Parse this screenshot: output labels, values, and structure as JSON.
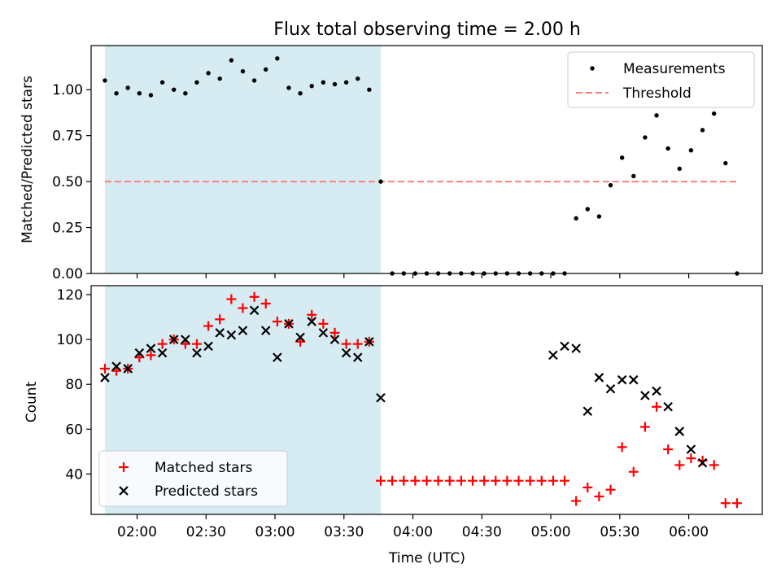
{
  "chart_data": [
    {
      "type": "scatter",
      "title": "Flux total observing time = 2.00 h",
      "xlabel": "",
      "ylabel": "Matched/Predicted stars",
      "ylim": [
        0,
        1.24
      ],
      "yticks": [
        "0.00",
        "0.25",
        "0.50",
        "0.75",
        "1.00"
      ],
      "ytick_values": [
        0,
        0.25,
        0.5,
        0.75,
        1.0
      ],
      "x_unit": "minutes of day (UTC)",
      "xlim": [
        100,
        392
      ],
      "shaded_span": [
        106,
        226
      ],
      "shade_color": "#add8e6",
      "legend_position": "upper right",
      "series": [
        {
          "name": "Measurements",
          "marker": "dot",
          "color": "#000000",
          "x": [
            106,
            111,
            116,
            121,
            126,
            131,
            136,
            141,
            146,
            151,
            156,
            161,
            166,
            171,
            176,
            181,
            186,
            191,
            196,
            201,
            206,
            211,
            216,
            221,
            226,
            231,
            236,
            241,
            246,
            251,
            256,
            261,
            266,
            271,
            276,
            281,
            286,
            291,
            296,
            301,
            306,
            311,
            316,
            321,
            326,
            331,
            336,
            341,
            346,
            351,
            356,
            361,
            366,
            371,
            376,
            381
          ],
          "y": [
            1.05,
            0.98,
            1.01,
            0.98,
            0.97,
            1.04,
            1.0,
            0.98,
            1.04,
            1.09,
            1.06,
            1.16,
            1.1,
            1.05,
            1.11,
            1.17,
            1.01,
            0.98,
            1.02,
            1.04,
            1.03,
            1.04,
            1.06,
            1.0,
            0.5,
            0,
            0,
            0,
            0,
            0,
            0,
            0,
            0,
            0,
            0,
            0,
            0,
            0,
            0,
            0,
            0,
            0.3,
            0.35,
            0.31,
            0.48,
            0.63,
            0.53,
            0.74,
            0.86,
            0.68,
            0.57,
            0.67,
            0.78,
            0.87,
            0.6,
            0
          ]
        },
        {
          "name": "Threshold",
          "line": "dashed",
          "color": "#ff7f7f",
          "x": [
            106,
            381
          ],
          "y": [
            0.5,
            0.5
          ]
        }
      ]
    },
    {
      "type": "scatter",
      "title": "",
      "xlabel": "Time (UTC)",
      "ylabel": "Count",
      "ylim": [
        22,
        124
      ],
      "yticks": [
        "40",
        "60",
        "80",
        "100",
        "120"
      ],
      "ytick_values": [
        40,
        60,
        80,
        100,
        120
      ],
      "xticks": [
        "02:00",
        "02:30",
        "03:00",
        "03:30",
        "04:00",
        "04:30",
        "05:00",
        "05:30",
        "06:00"
      ],
      "xtick_values": [
        120,
        150,
        180,
        210,
        240,
        270,
        300,
        330,
        360
      ],
      "legend_position": "lower left",
      "series": [
        {
          "name": "Matched stars",
          "marker": "plus",
          "color": "#ff0000",
          "x": [
            106,
            111,
            116,
            121,
            126,
            131,
            136,
            141,
            146,
            151,
            156,
            161,
            166,
            171,
            176,
            181,
            186,
            191,
            196,
            201,
            206,
            211,
            216,
            221,
            226,
            231,
            236,
            241,
            246,
            251,
            256,
            261,
            266,
            271,
            276,
            281,
            286,
            291,
            296,
            301,
            306,
            311,
            316,
            321,
            326,
            331,
            336,
            341,
            346,
            351,
            356,
            361,
            366,
            371,
            376,
            381
          ],
          "y": [
            87,
            86,
            87,
            92,
            93,
            98,
            100,
            98,
            98,
            106,
            109,
            118,
            114,
            119,
            116,
            108,
            107,
            99,
            111,
            107,
            103,
            98,
            98,
            99,
            37,
            37,
            37,
            37,
            37,
            37,
            37,
            37,
            37,
            37,
            37,
            37,
            37,
            37,
            37,
            37,
            37,
            28,
            34,
            30,
            33,
            52,
            41,
            61,
            70,
            51,
            44,
            47,
            46,
            44,
            27,
            27
          ]
        },
        {
          "name": "Predicted stars",
          "marker": "x",
          "color": "#000000",
          "x": [
            106,
            111,
            116,
            121,
            126,
            131,
            136,
            141,
            146,
            151,
            156,
            161,
            166,
            171,
            176,
            181,
            186,
            191,
            196,
            201,
            206,
            211,
            216,
            221,
            226,
            301,
            306,
            311,
            316,
            321,
            326,
            331,
            336,
            341,
            346,
            351,
            356,
            361,
            366
          ],
          "y": [
            83,
            88,
            87,
            94,
            96,
            94,
            100,
            100,
            94,
            97,
            103,
            102,
            104,
            113,
            104,
            92,
            107,
            101,
            108,
            103,
            100,
            94,
            92,
            99,
            74,
            93,
            97,
            96,
            68,
            83,
            78,
            82,
            82,
            75,
            77,
            70,
            59,
            51,
            45
          ]
        }
      ]
    }
  ]
}
